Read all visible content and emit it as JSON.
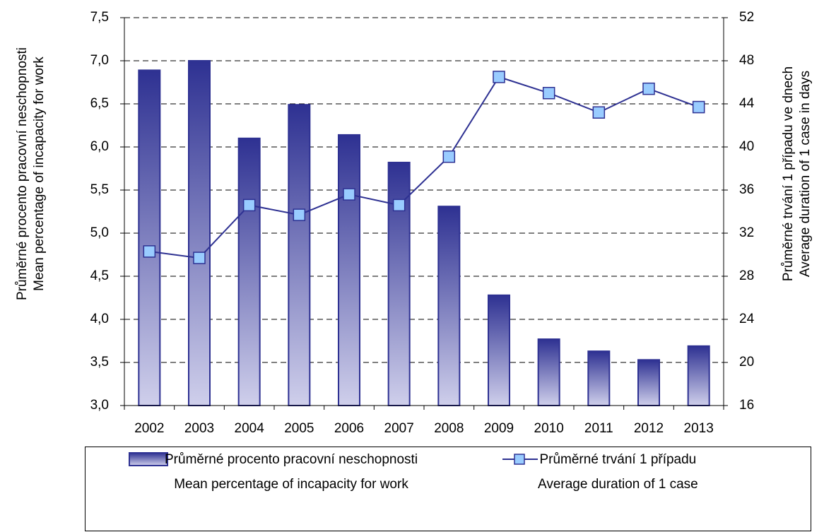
{
  "chart_data": {
    "type": "bar+line",
    "y_label": "Průměrné procento pracovní neschopnosti\nMean percentage of incapacity for work",
    "y2_label": "Průměrné trvání 1 případu ve dnech\nAverage duration of 1 case in days",
    "categories": [
      "2002",
      "2003",
      "2004",
      "2005",
      "2006",
      "2007",
      "2008",
      "2009",
      "2010",
      "2011",
      "2012",
      "2013"
    ],
    "series": [
      {
        "name": "Průměrné procento pracovní neschopnosti\nMean percentage of incapacity for work",
        "type": "bar",
        "color": "#2e3192",
        "values": [
          6.89,
          7.0,
          6.1,
          6.49,
          6.14,
          5.82,
          5.31,
          4.28,
          3.77,
          3.63,
          3.53,
          3.69
        ]
      },
      {
        "name": "Průměrné trvání 1 případu\nAverage duration of 1 case",
        "type": "line",
        "axis": "y2",
        "color": "#2e3192",
        "marker_color": "#99ccff",
        "values": [
          30.3,
          29.7,
          34.6,
          33.7,
          35.6,
          34.6,
          39.1,
          46.5,
          45.0,
          43.2,
          45.4,
          43.7
        ]
      }
    ],
    "ylim": [
      3,
      7.5
    ],
    "yticks": [
      {
        "value": 3,
        "label": "3,0"
      },
      {
        "value": 3.5,
        "label": "3,5"
      },
      {
        "value": 4,
        "label": "4,0"
      },
      {
        "value": 4.5,
        "label": "4,5"
      },
      {
        "value": 5,
        "label": "5,0"
      },
      {
        "value": 5.5,
        "label": "5,5"
      },
      {
        "value": 6,
        "label": "6,0"
      },
      {
        "value": 6.5,
        "label": "6,5"
      },
      {
        "value": 7,
        "label": "7,0"
      },
      {
        "value": 7.5,
        "label": "7,5"
      }
    ],
    "y2lim": [
      16,
      52
    ],
    "y2ticks": [
      16,
      20,
      24,
      28,
      32,
      36,
      40,
      44,
      48,
      52
    ],
    "grid": true,
    "legend": "bottom"
  }
}
